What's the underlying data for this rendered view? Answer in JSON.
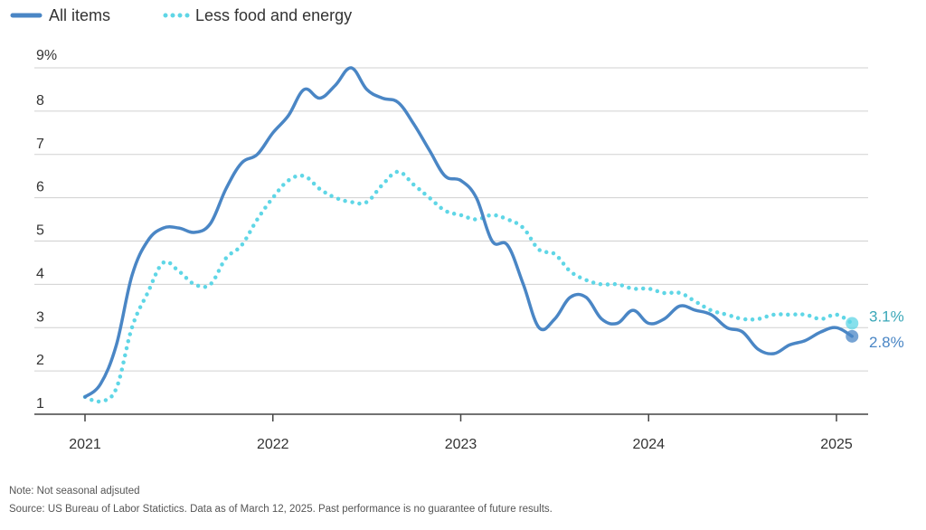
{
  "colors": {
    "all_items": "#4a86c5",
    "core": "#5fd6e6",
    "grid": "#d0d0d0",
    "axis": "#444444"
  },
  "chart_data": {
    "type": "line",
    "title": "",
    "xlabel": "",
    "ylabel": "",
    "ylim": [
      1,
      9
    ],
    "xlim": [
      2021.0,
      2025.17
    ],
    "grid": true,
    "legend": "top-left",
    "x_ticks": [
      2021,
      2022,
      2023,
      2024,
      2025
    ],
    "x_tick_labels": [
      "2021",
      "2022",
      "2023",
      "2024",
      "2025"
    ],
    "y_ticks": [
      1,
      2,
      3,
      4,
      5,
      6,
      7,
      8,
      9
    ],
    "y_tick_labels": [
      "1",
      "2",
      "3",
      "4",
      "5",
      "6",
      "7",
      "8",
      "9%"
    ],
    "series": [
      {
        "name": "All items",
        "style": "solid",
        "x": [
          2021.0,
          2021.083,
          2021.167,
          2021.25,
          2021.333,
          2021.417,
          2021.5,
          2021.583,
          2021.667,
          2021.75,
          2021.833,
          2021.917,
          2022.0,
          2022.083,
          2022.167,
          2022.25,
          2022.333,
          2022.417,
          2022.5,
          2022.583,
          2022.667,
          2022.75,
          2022.833,
          2022.917,
          2023.0,
          2023.083,
          2023.167,
          2023.25,
          2023.333,
          2023.417,
          2023.5,
          2023.583,
          2023.667,
          2023.75,
          2023.833,
          2023.917,
          2024.0,
          2024.083,
          2024.167,
          2024.25,
          2024.333,
          2024.417,
          2024.5,
          2024.583,
          2024.667,
          2024.75,
          2024.833,
          2024.917,
          2025.0,
          2025.083
        ],
        "values": [
          1.4,
          1.7,
          2.6,
          4.2,
          5.0,
          5.3,
          5.3,
          5.2,
          5.4,
          6.2,
          6.8,
          7.0,
          7.5,
          7.9,
          8.5,
          8.3,
          8.6,
          9.0,
          8.5,
          8.3,
          8.2,
          7.7,
          7.1,
          6.5,
          6.4,
          6.0,
          5.0,
          4.9,
          4.0,
          3.0,
          3.2,
          3.7,
          3.7,
          3.2,
          3.1,
          3.4,
          3.1,
          3.2,
          3.5,
          3.4,
          3.3,
          3.0,
          2.9,
          2.5,
          2.4,
          2.6,
          2.7,
          2.9,
          3.0,
          2.8
        ],
        "end_label": "2.8%"
      },
      {
        "name": "Less food and energy",
        "style": "dotted",
        "x": [
          2021.0,
          2021.083,
          2021.167,
          2021.25,
          2021.333,
          2021.417,
          2021.5,
          2021.583,
          2021.667,
          2021.75,
          2021.833,
          2021.917,
          2022.0,
          2022.083,
          2022.167,
          2022.25,
          2022.333,
          2022.417,
          2022.5,
          2022.583,
          2022.667,
          2022.75,
          2022.833,
          2022.917,
          2023.0,
          2023.083,
          2023.167,
          2023.25,
          2023.333,
          2023.417,
          2023.5,
          2023.583,
          2023.667,
          2023.75,
          2023.833,
          2023.917,
          2024.0,
          2024.083,
          2024.167,
          2024.25,
          2024.333,
          2024.417,
          2024.5,
          2024.583,
          2024.667,
          2024.75,
          2024.833,
          2024.917,
          2025.0,
          2025.083
        ],
        "values": [
          1.4,
          1.3,
          1.6,
          3.0,
          3.8,
          4.5,
          4.3,
          4.0,
          4.0,
          4.6,
          4.9,
          5.5,
          6.0,
          6.4,
          6.5,
          6.2,
          6.0,
          5.9,
          5.9,
          6.3,
          6.6,
          6.3,
          6.0,
          5.7,
          5.6,
          5.5,
          5.6,
          5.5,
          5.3,
          4.8,
          4.7,
          4.3,
          4.1,
          4.0,
          4.0,
          3.9,
          3.9,
          3.8,
          3.8,
          3.6,
          3.4,
          3.3,
          3.2,
          3.2,
          3.3,
          3.3,
          3.3,
          3.2,
          3.3,
          3.1
        ],
        "end_label": "3.1%"
      }
    ]
  },
  "footer": {
    "note": "Note: Not seasonal adjsuted",
    "source": "Source: US Bureau of Labor Statictics. Data as of March 12, 2025. Past performance is no guarantee of future results."
  }
}
